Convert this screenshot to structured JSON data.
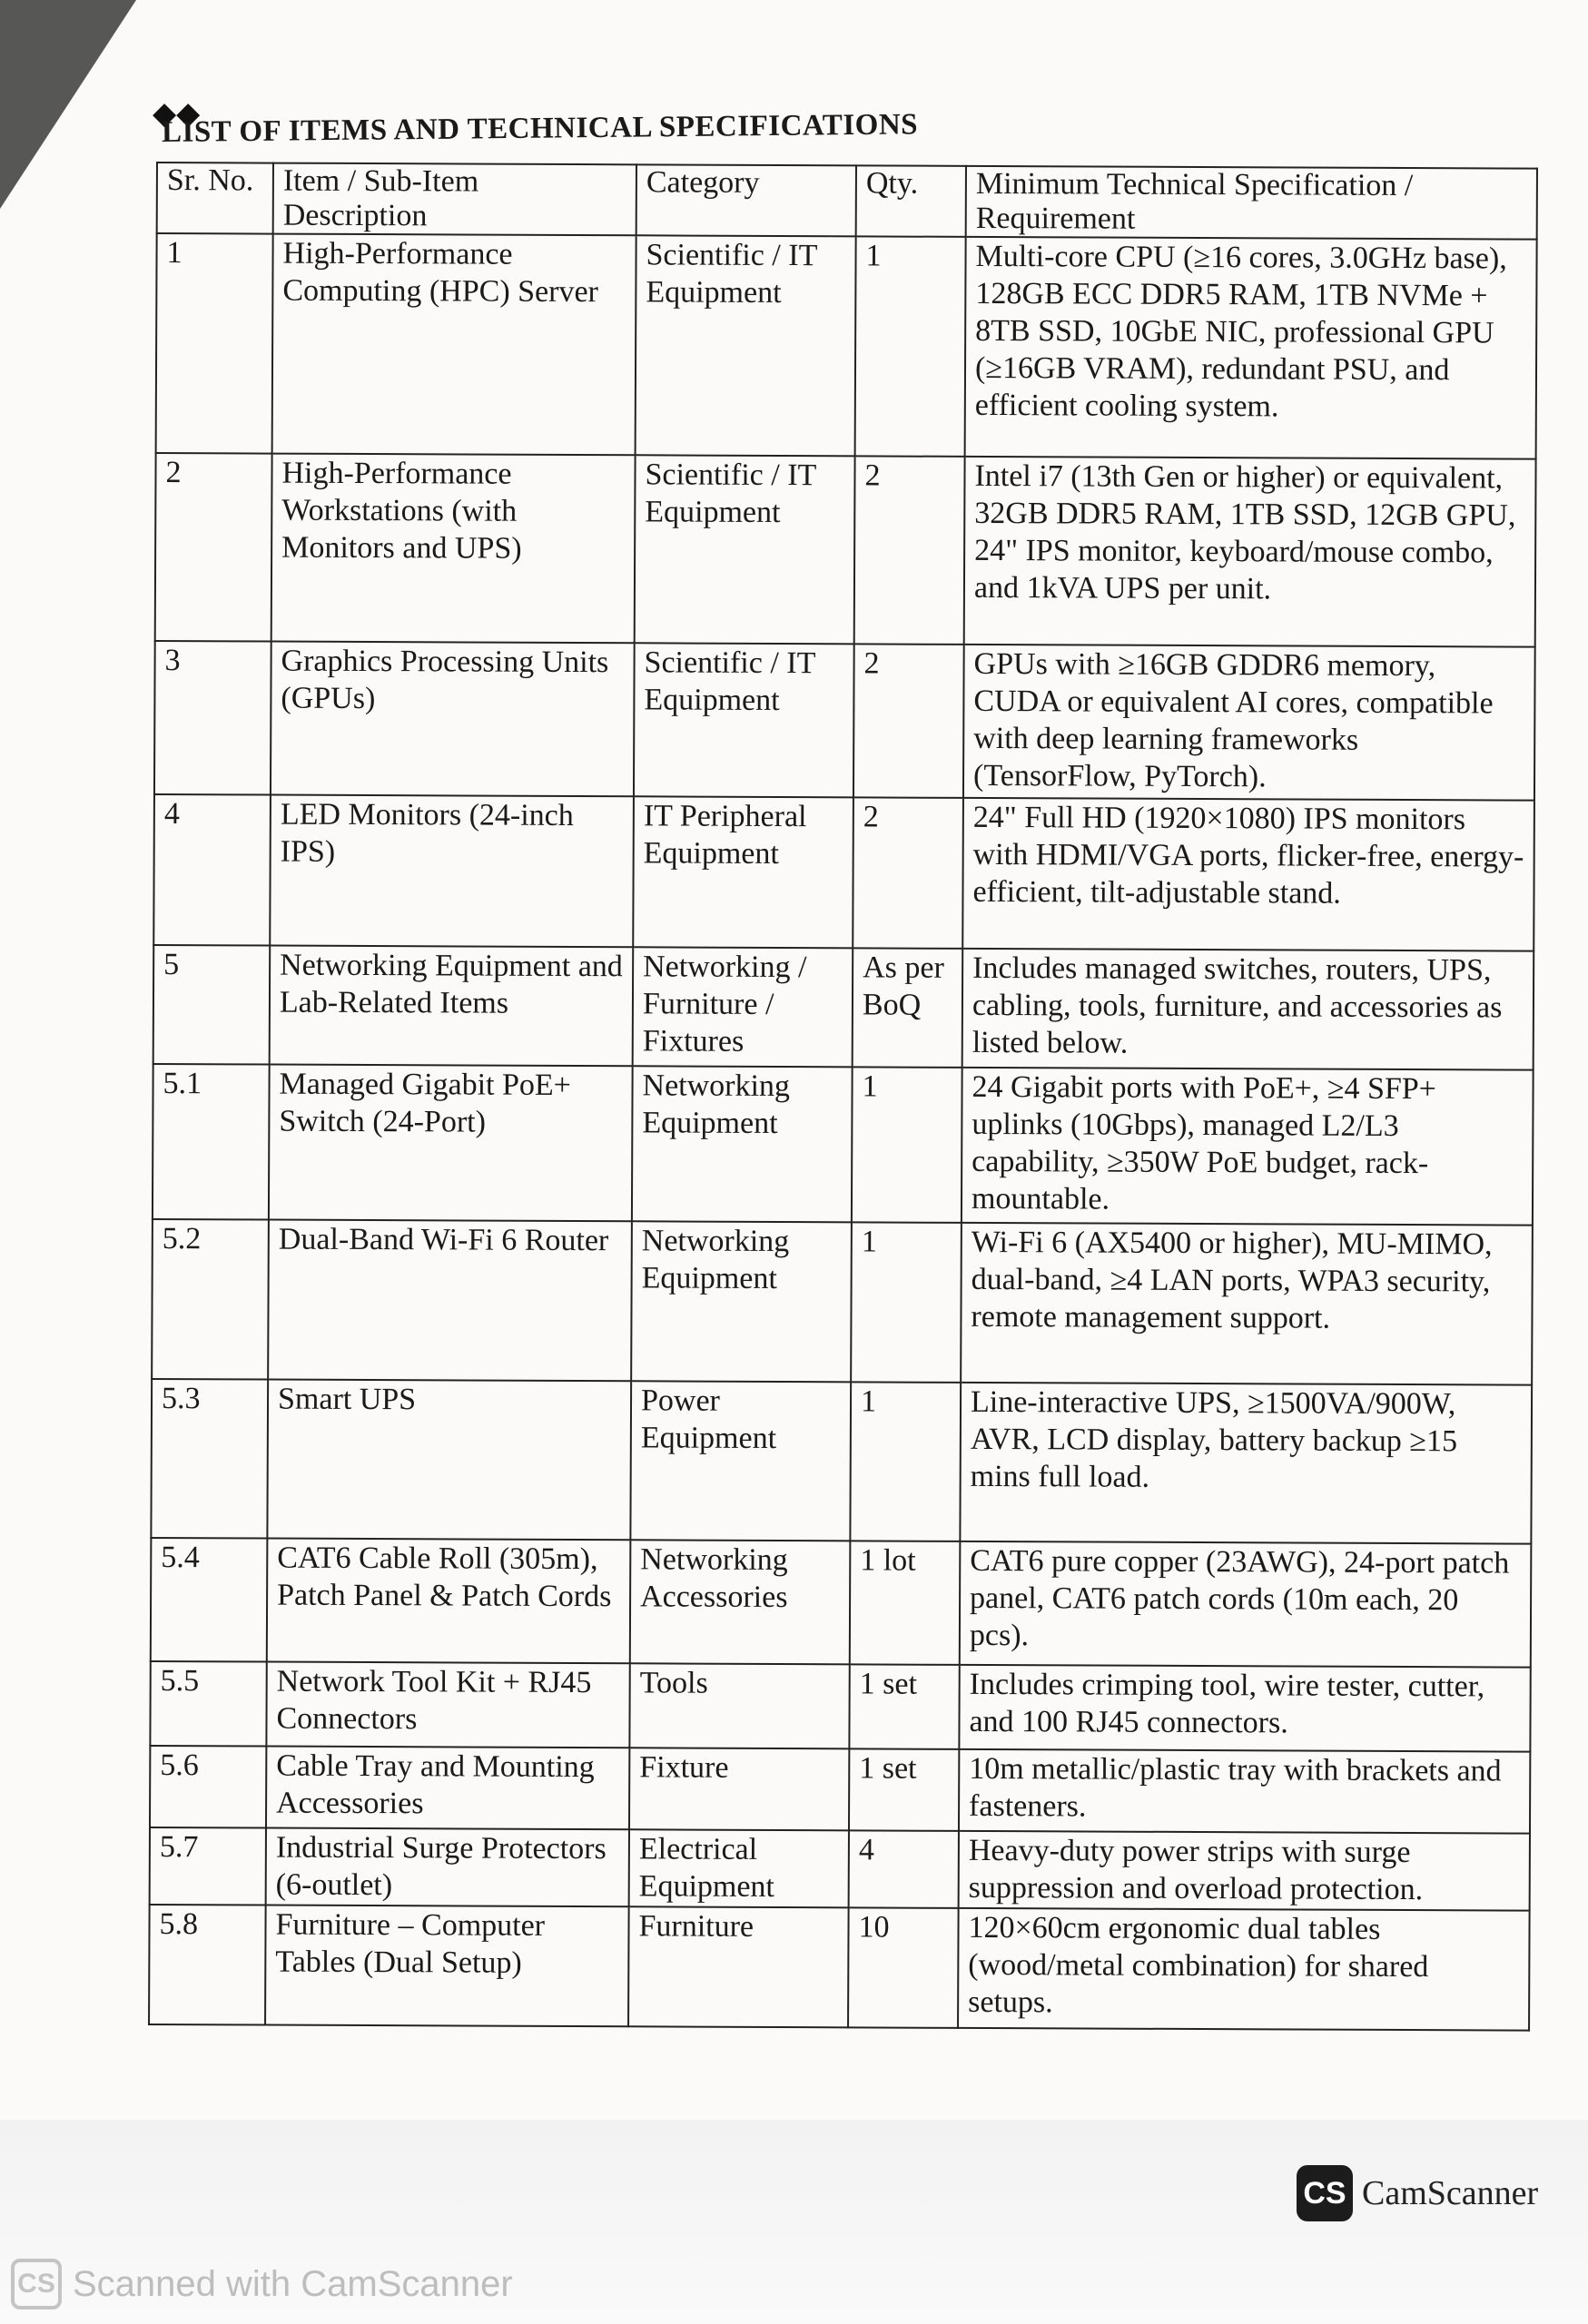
{
  "document": {
    "title": "LIST OF ITEMS AND TECHNICAL SPECIFICATIONS",
    "columns": [
      "Sr. No.",
      "Item / Sub-Item Description",
      "Category",
      "Qty.",
      "Minimum Technical Specification / Requirement"
    ],
    "rows": [
      {
        "sr": "1",
        "item": "High-Performance Computing (HPC) Server",
        "category": "Scientific / IT Equipment",
        "qty": "1",
        "spec": "Multi-core CPU (≥16 cores, 3.0GHz base), 128GB ECC DDR5 RAM, 1TB NVMe + 8TB SSD, 10GbE NIC, professional GPU (≥16GB VRAM), redundant PSU, and efficient cooling system."
      },
      {
        "sr": "2",
        "item": "High-Performance Workstations (with Monitors and UPS)",
        "category": "Scientific / IT Equipment",
        "qty": "2",
        "spec": "Intel i7 (13th Gen or higher) or equivalent, 32GB DDR5 RAM, 1TB SSD, 12GB GPU, 24\" IPS monitor, keyboard/mouse combo, and 1kVA UPS per unit."
      },
      {
        "sr": "3",
        "item": "Graphics Processing Units (GPUs)",
        "category": "Scientific / IT Equipment",
        "qty": "2",
        "spec": "GPUs with ≥16GB GDDR6 memory, CUDA or equivalent AI cores, compatible with deep learning frameworks (TensorFlow, PyTorch)."
      },
      {
        "sr": "4",
        "item": "LED Monitors (24-inch IPS)",
        "category": "IT Peripheral Equipment",
        "qty": "2",
        "spec": "24\" Full HD (1920×1080) IPS monitors with HDMI/VGA ports, flicker-free, energy-efficient, tilt-adjustable stand."
      },
      {
        "sr": "5",
        "item": "Networking Equipment and Lab-Related Items",
        "category": "Networking / Furniture / Fixtures",
        "qty": "As per BoQ",
        "spec": "Includes managed switches, routers, UPS, cabling, tools, furniture, and accessories as listed below."
      },
      {
        "sr": "5.1",
        "item": "Managed Gigabit PoE+ Switch (24-Port)",
        "category": "Networking Equipment",
        "qty": "1",
        "spec": "24 Gigabit ports with PoE+, ≥4 SFP+ uplinks (10Gbps), managed L2/L3 capability, ≥350W PoE budget, rack-mountable."
      },
      {
        "sr": "5.2",
        "item": "Dual-Band Wi-Fi 6 Router",
        "category": "Networking Equipment",
        "qty": "1",
        "spec": "Wi-Fi 6 (AX5400 or higher), MU-MIMO, dual-band, ≥4 LAN ports, WPA3 security, remote management support."
      },
      {
        "sr": "5.3",
        "item": "Smart UPS",
        "category": "Power Equipment",
        "qty": "1",
        "spec": "Line-interactive UPS, ≥1500VA/900W, AVR, LCD display, battery backup ≥15 mins full load."
      },
      {
        "sr": "5.4",
        "item": "CAT6 Cable Roll (305m), Patch Panel & Patch Cords",
        "category": "Networking Accessories",
        "qty": "1 lot",
        "spec": "CAT6 pure copper (23AWG), 24-port patch panel, CAT6 patch cords (10m each, 20 pcs)."
      },
      {
        "sr": "5.5",
        "item": "Network Tool Kit + RJ45 Connectors",
        "category": "Tools",
        "qty": "1 set",
        "spec": "Includes crimping tool, wire tester, cutter, and 100 RJ45 connectors."
      },
      {
        "sr": "5.6",
        "item": "Cable Tray and Mounting Accessories",
        "category": "Fixture",
        "qty": "1 set",
        "spec": "10m metallic/plastic tray with brackets and fasteners."
      },
      {
        "sr": "5.7",
        "item": "Industrial Surge Protectors (6-outlet)",
        "category": "Electrical Equipment",
        "qty": "4",
        "spec": "Heavy-duty power strips with surge suppression and overload protection."
      },
      {
        "sr": "5.8",
        "item": "Furniture – Computer Tables (Dual Setup)",
        "category": "Furniture",
        "qty": "10",
        "spec": "120×60cm ergonomic dual tables (wood/metal combination) for shared setups."
      }
    ]
  },
  "branding": {
    "logo_badge": "CS",
    "logo_name": "CamScanner",
    "watermark": "Scanned with CamScanner"
  }
}
